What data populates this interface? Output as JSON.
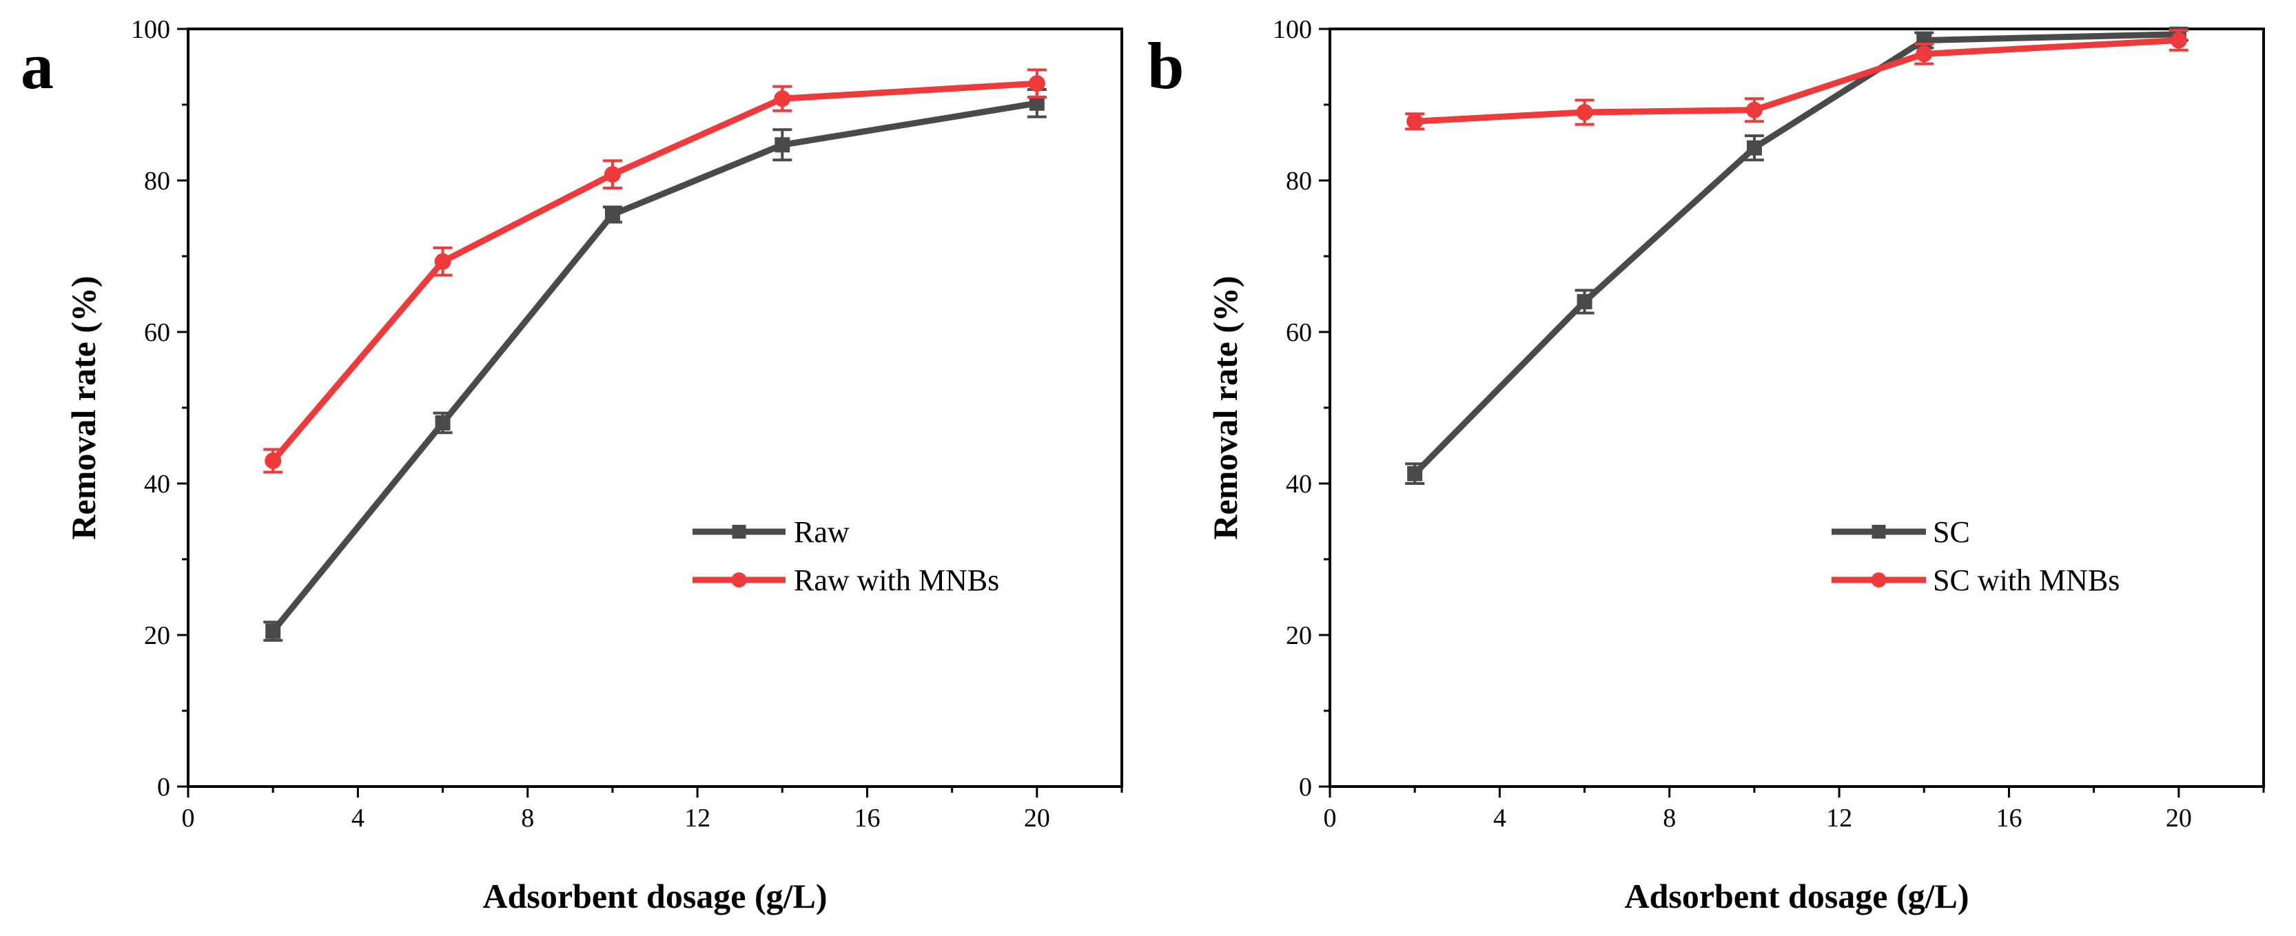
{
  "chart_data": [
    {
      "panel": "a",
      "type": "line",
      "xlabel": "Adsorbent dosage (g/L)",
      "ylabel": "Removal rate (%)",
      "xlim": [
        0,
        22
      ],
      "ylim": [
        0,
        100
      ],
      "xticks": [
        0,
        4,
        8,
        12,
        16,
        20
      ],
      "yticks": [
        0,
        20,
        40,
        60,
        80,
        100
      ],
      "legend_position": "center-right",
      "series": [
        {
          "name": "Raw",
          "color": "#4a4a4a",
          "marker": "square",
          "x": [
            2,
            6,
            10,
            14,
            20
          ],
          "y": [
            20.5,
            48,
            75.5,
            84.7,
            90.2
          ],
          "err": [
            1.2,
            1.3,
            1.0,
            2.0,
            1.8
          ]
        },
        {
          "name": "Raw with MNBs",
          "color": "#ee3a3a",
          "marker": "circle",
          "x": [
            2,
            6,
            10,
            14,
            20
          ],
          "y": [
            43,
            69.3,
            80.8,
            90.8,
            92.8
          ],
          "err": [
            1.5,
            1.8,
            1.8,
            1.6,
            1.8
          ]
        }
      ]
    },
    {
      "panel": "b",
      "type": "line",
      "xlabel": "Adsorbent dosage (g/L)",
      "ylabel": "Removal rate (%)",
      "xlim": [
        0,
        22
      ],
      "ylim": [
        0,
        100
      ],
      "xticks": [
        0,
        4,
        8,
        12,
        16,
        20
      ],
      "yticks": [
        0,
        20,
        40,
        60,
        80,
        100
      ],
      "legend_position": "bottom-right",
      "series": [
        {
          "name": "SC",
          "color": "#4a4a4a",
          "marker": "square",
          "x": [
            2,
            6,
            10,
            14,
            20
          ],
          "y": [
            41.3,
            64,
            84.3,
            98.5,
            99.3
          ],
          "err": [
            1.3,
            1.5,
            1.6,
            1.0,
            0.8
          ]
        },
        {
          "name": "SC with MNBs",
          "color": "#ee3a3a",
          "marker": "circle",
          "x": [
            2,
            6,
            10,
            14,
            20
          ],
          "y": [
            87.8,
            89,
            89.3,
            96.7,
            98.5
          ],
          "err": [
            1.0,
            1.6,
            1.5,
            1.3,
            1.3
          ]
        }
      ]
    }
  ]
}
